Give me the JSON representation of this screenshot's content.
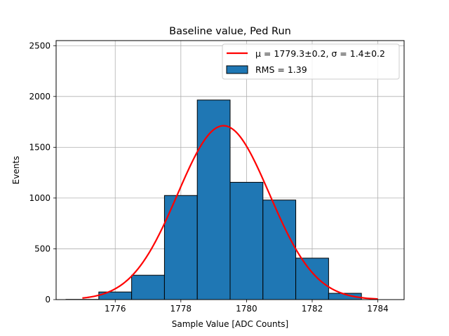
{
  "chart_data": {
    "type": "bar",
    "title": "Baseline value, Ped Run",
    "xlabel": "Sample Value [ADC Counts]",
    "ylabel": "Events",
    "xlim": [
      1774.2,
      1784.8
    ],
    "ylim": [
      0,
      2550
    ],
    "xticks": [
      1776,
      1778,
      1780,
      1782,
      1784
    ],
    "yticks": [
      0,
      500,
      1000,
      1500,
      2000,
      2500
    ],
    "grid": true,
    "legend_placement": "top-right",
    "bins": {
      "edges": [
        1774.5,
        1775.5,
        1776.5,
        1777.5,
        1778.5,
        1779.5,
        1780.5,
        1781.5,
        1782.5,
        1783.5
      ],
      "values": [
        2,
        75,
        240,
        1025,
        1965,
        1155,
        980,
        408,
        62
      ]
    },
    "fit": {
      "mu": 1779.3,
      "sigma": 1.4,
      "amplitude": 1712,
      "x_range": [
        1775.0,
        1784.0
      ]
    },
    "series": [
      {
        "name": "μ = 1779.3±0.2, σ = 1.4±0.2",
        "kind": "line",
        "color": "#ff0000"
      },
      {
        "name": "RMS = 1.39",
        "kind": "bar",
        "color": "#1f77b4"
      }
    ],
    "legend": {
      "fit_label": "μ = 1779.3±0.2, σ = 1.4±0.2",
      "hist_label": "RMS = 1.39"
    },
    "colors": {
      "bar_fill": "#1f77b4",
      "bar_edge": "#000000",
      "fit_line": "#ff0000",
      "grid": "#b0b0b0"
    }
  }
}
